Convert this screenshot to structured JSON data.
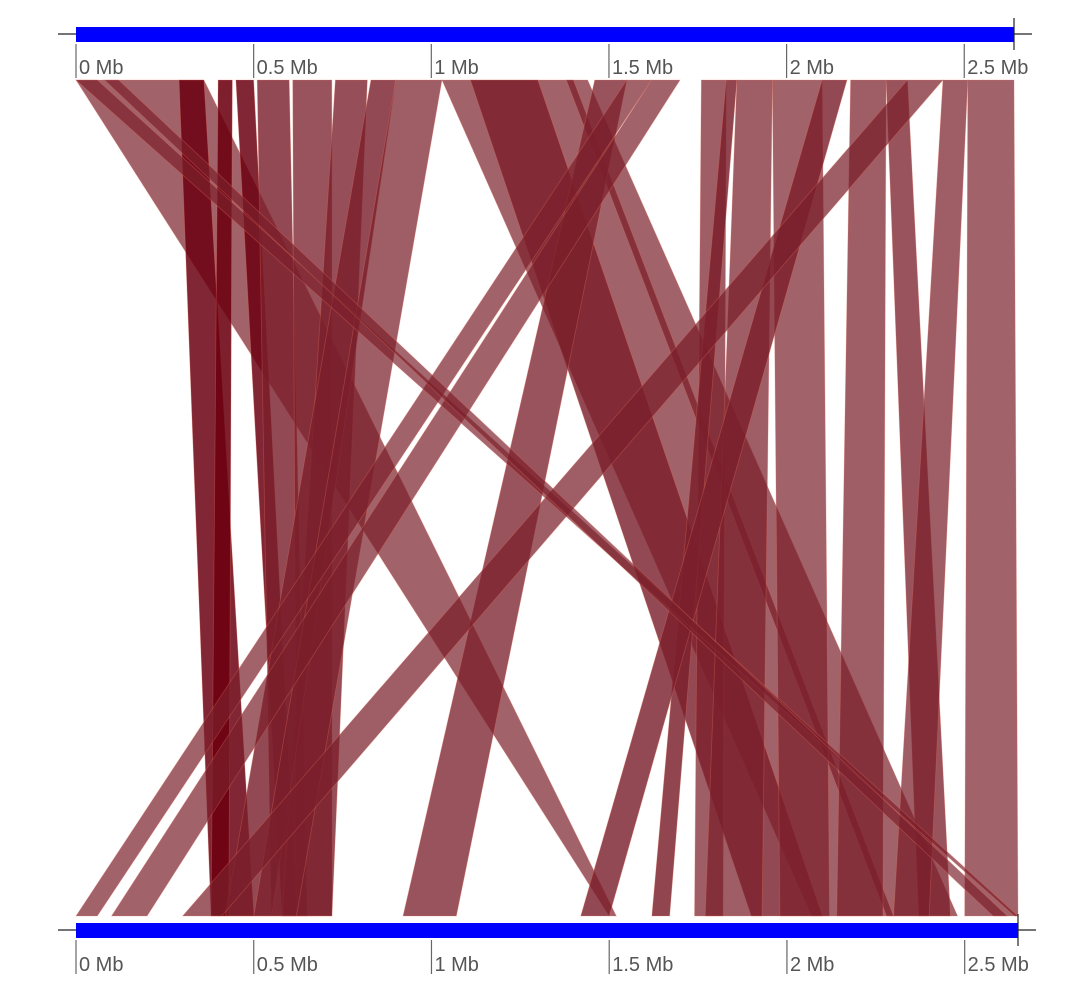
{
  "colors": {
    "genome_bar": "#0000ff",
    "ribbon_fill": "#7a1f2b",
    "ribbon_edge": "#e8735f",
    "ribbon_dark": "#6b0010",
    "tick_text": "#555555"
  },
  "chart_data": {
    "type": "synteny",
    "units": "Mb",
    "top_genome": {
      "length_mb": 2.64,
      "ticks": [
        {
          "value": 0,
          "label": "0 Mb"
        },
        {
          "value": 0.5,
          "label": "0.5 Mb"
        },
        {
          "value": 1,
          "label": "1 Mb"
        },
        {
          "value": 1.5,
          "label": "1.5 Mb"
        },
        {
          "value": 2,
          "label": "2 Mb"
        },
        {
          "value": 2.5,
          "label": "2.5 Mb"
        }
      ]
    },
    "bottom_genome": {
      "length_mb": 2.65,
      "ticks": [
        {
          "value": 0,
          "label": "0 Mb"
        },
        {
          "value": 0.5,
          "label": "0.5 Mb"
        },
        {
          "value": 1,
          "label": "1 Mb"
        },
        {
          "value": 1.5,
          "label": "1.5 Mb"
        },
        {
          "value": 2,
          "label": "2 Mb"
        },
        {
          "value": 2.5,
          "label": "2.5 Mb"
        }
      ]
    },
    "blocks": [
      {
        "top": [
          0.0,
          0.36
        ],
        "bottom": [
          1.5,
          1.52
        ],
        "intensity": 0.55
      },
      {
        "top": [
          0.29,
          0.36
        ],
        "bottom": [
          0.38,
          0.5
        ],
        "intensity": 0.9
      },
      {
        "top": [
          0.4,
          0.44
        ],
        "bottom": [
          0.38,
          0.43
        ],
        "intensity": 0.95
      },
      {
        "top": [
          0.45,
          0.5
        ],
        "bottom": [
          0.58,
          0.62
        ],
        "intensity": 0.9
      },
      {
        "top": [
          0.51,
          0.6
        ],
        "bottom": [
          0.55,
          0.65
        ],
        "intensity": 0.8
      },
      {
        "top": [
          0.61,
          0.72
        ],
        "bottom": [
          0.62,
          0.72
        ],
        "intensity": 0.7
      },
      {
        "top": [
          0.73,
          0.82
        ],
        "bottom": [
          0.58,
          0.72
        ],
        "intensity": 0.75
      },
      {
        "top": [
          0.83,
          0.9
        ],
        "bottom": [
          0.42,
          0.55
        ],
        "intensity": 0.8
      },
      {
        "top": [
          0.9,
          1.03
        ],
        "bottom": [
          0.5,
          0.62
        ],
        "intensity": 0.6
      },
      {
        "top": [
          1.03,
          1.44
        ],
        "bottom": [
          2.07,
          2.48
        ],
        "intensity": 0.55
      },
      {
        "top": [
          1.11,
          1.3
        ],
        "bottom": [
          1.9,
          2.1
        ],
        "intensity": 0.8
      },
      {
        "top": [
          1.38,
          1.4
        ],
        "bottom": [
          2.28,
          2.3
        ],
        "intensity": 0.6
      },
      {
        "top": [
          1.46,
          1.55
        ],
        "bottom": [
          0.92,
          1.07
        ],
        "intensity": 0.7
      },
      {
        "top": [
          1.55,
          1.62
        ],
        "bottom": [
          0.0,
          0.06
        ],
        "intensity": 0.55
      },
      {
        "top": [
          1.62,
          1.7
        ],
        "bottom": [
          0.1,
          0.2
        ],
        "intensity": 0.55
      },
      {
        "top": [
          1.76,
          1.83
        ],
        "bottom": [
          1.74,
          1.82
        ],
        "intensity": 0.6
      },
      {
        "top": [
          1.83,
          1.86
        ],
        "bottom": [
          1.62,
          1.67
        ],
        "intensity": 0.85
      },
      {
        "top": [
          1.86,
          1.96
        ],
        "bottom": [
          1.77,
          1.93
        ],
        "intensity": 0.6
      },
      {
        "top": [
          1.96,
          2.1
        ],
        "bottom": [
          1.98,
          2.12
        ],
        "intensity": 0.55
      },
      {
        "top": [
          2.1,
          2.17
        ],
        "bottom": [
          1.42,
          1.5
        ],
        "intensity": 0.8
      },
      {
        "top": [
          2.18,
          2.28
        ],
        "bottom": [
          2.14,
          2.27
        ],
        "intensity": 0.6
      },
      {
        "top": [
          2.28,
          2.34
        ],
        "bottom": [
          2.37,
          2.46
        ],
        "intensity": 0.7
      },
      {
        "top": [
          2.34,
          2.44
        ],
        "bottom": [
          0.3,
          0.41
        ],
        "intensity": 0.6
      },
      {
        "top": [
          2.44,
          2.51
        ],
        "bottom": [
          2.3,
          2.4
        ],
        "intensity": 0.6
      },
      {
        "top": [
          2.51,
          2.64
        ],
        "bottom": [
          2.5,
          2.65
        ],
        "intensity": 0.55
      },
      {
        "top": [
          0.0,
          0.06
        ],
        "bottom": [
          2.64,
          2.65
        ],
        "intensity": 0.5
      },
      {
        "top": [
          0.08,
          0.12
        ],
        "bottom": [
          2.58,
          2.62
        ],
        "intensity": 0.5
      }
    ]
  }
}
